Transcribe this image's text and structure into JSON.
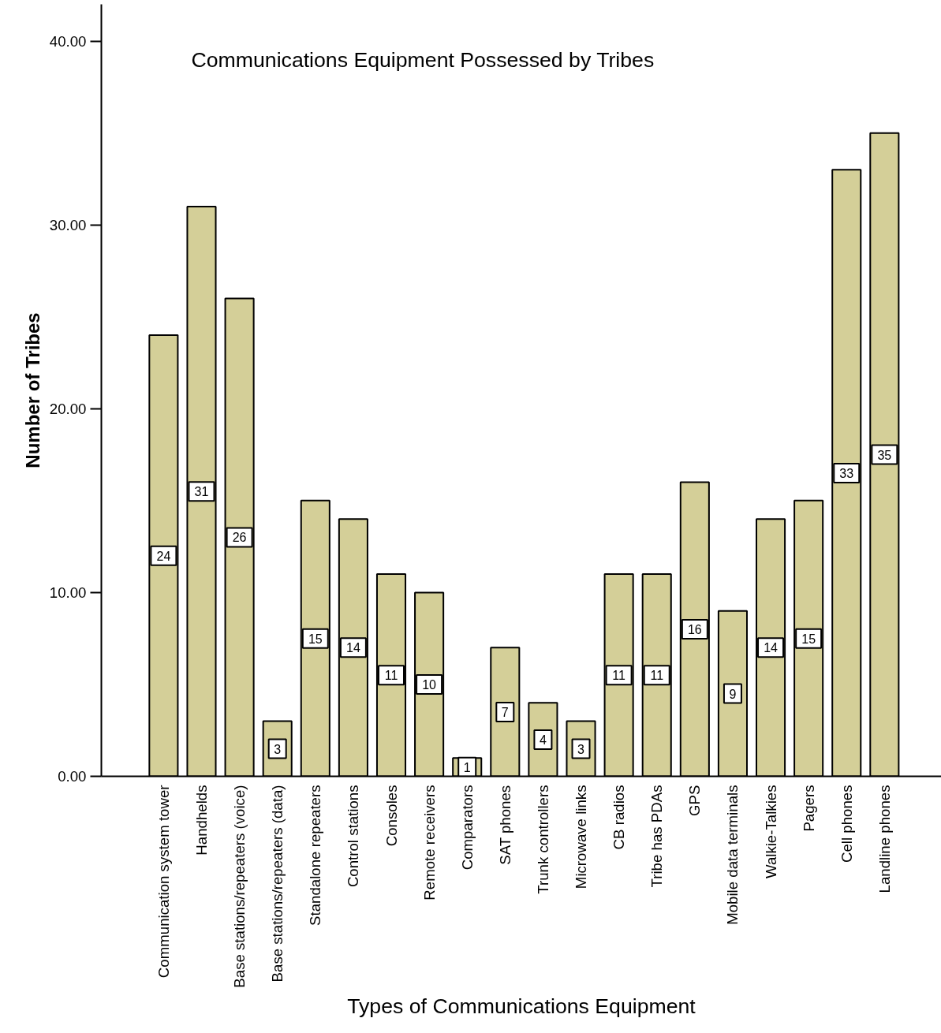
{
  "chart_data": {
    "type": "bar",
    "title": "Communications Equipment Possessed by Tribes",
    "xlabel": "Types of Communications Equipment",
    "ylabel": "Number of Tribes",
    "categories": [
      "Communication system tower",
      "Handhelds",
      "Base stations/repeaters (voice)",
      "Base stations/repeaters (data)",
      "Standalone repeaters",
      "Control stations",
      "Consoles",
      "Remote receivers",
      "Comparators",
      "SAT phones",
      "Trunk controllers",
      "Microwave links",
      "CB radios",
      "Tribe has PDAs",
      "GPS",
      "Mobile data terminals",
      "Walkie-Talkies",
      "Pagers",
      "Cell phones",
      "Landline phones"
    ],
    "values": [
      24,
      31,
      26,
      3,
      15,
      14,
      11,
      10,
      1,
      7,
      4,
      3,
      11,
      11,
      16,
      9,
      14,
      15,
      33,
      35
    ],
    "color": "#d4cf98",
    "ylim": [
      0,
      42
    ],
    "yticks": [
      {
        "value": 0,
        "label": "0.00"
      },
      {
        "value": 10,
        "label": "10.00"
      },
      {
        "value": 20,
        "label": "20.00"
      },
      {
        "value": 30,
        "label": "30.00"
      },
      {
        "value": 40,
        "label": "40.00"
      }
    ],
    "data_labels": true
  }
}
